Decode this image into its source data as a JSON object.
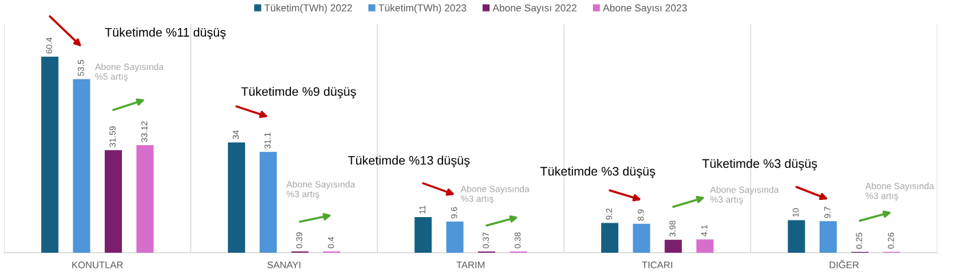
{
  "chart_data": {
    "type": "bar",
    "categories": [
      "KONUTLAR",
      "SANAYI",
      "TARIM",
      "TICARI",
      "DIĞER"
    ],
    "series": [
      {
        "name": "Tüketim(TWh) 2022",
        "color": "#156082",
        "values": [
          60.4,
          34,
          11,
          9.2,
          10
        ]
      },
      {
        "name": "Tüketim(TWh) 2023",
        "color": "#4e95d9",
        "values": [
          53.5,
          31.1,
          9.6,
          8.9,
          9.7
        ]
      },
      {
        "name": "Abone Sayısı 2022",
        "color": "#7a1f6b",
        "values": [
          31.59,
          0.39,
          0.37,
          3.98,
          0.25
        ]
      },
      {
        "name": "Abone Sayısı 2023",
        "color": "#d86ecc",
        "values": [
          33.12,
          0.4,
          0.38,
          4.1,
          0.26
        ]
      }
    ],
    "data_labels": true,
    "legend": "top",
    "grid": "x",
    "tick_labels": "x",
    "annotations": [
      "Tüketimde %11 düşüş",
      "Abone Sayısında\n%5 artış",
      "Tüketimde %9 düşüş",
      "Abone Sayısında\n%3 artış",
      "Tüketimde %13 düşüş",
      "Abone Sayısında\n%3 artış",
      "Tüketimde %3 düşüş",
      "Abone Sayısında\n%3 artış",
      "Tüketimde %3 düşüş",
      "Abone Sayısında\n%3 artış"
    ]
  }
}
